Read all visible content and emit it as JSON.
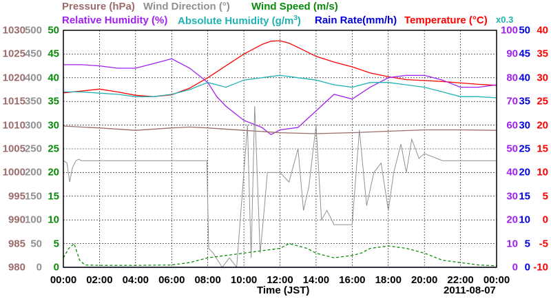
{
  "legend": {
    "pressure": "Pressure (hPa)",
    "wind_dir": "Wind Direction (°)",
    "wind_speed": "Wind Speed (m/s)",
    "rel_hum": "Relative Humidity (%)",
    "abs_hum_a": "Absolute Humidity (g/m",
    "abs_hum_sup": "3",
    "abs_hum_b": ")",
    "rain": "Rain Rate(mm/h)",
    "temp": "Temperature (°C)",
    "abs_scale": "x0.3"
  },
  "x_axis": {
    "ticks": [
      "00:00",
      "02:00",
      "04:00",
      "06:00",
      "08:00",
      "10:00",
      "12:00",
      "14:00",
      "16:00",
      "18:00",
      "20:00",
      "22:00",
      "00:00"
    ],
    "label": "Time (JST)",
    "date": "2011-08-07"
  },
  "y_axes": {
    "pressure": [
      "1030",
      "1025",
      "1020",
      "1015",
      "1010",
      "1005",
      "1000",
      "995",
      "990",
      "985",
      "980"
    ],
    "wind_dir": [
      "500",
      "450",
      "400",
      "350",
      "300",
      "250",
      "200",
      "150",
      "100",
      "50",
      "0"
    ],
    "wind_speed": [
      "50",
      "45",
      "40",
      "35",
      "30",
      "25",
      "20",
      "15",
      "10",
      "5",
      "0"
    ],
    "rel_hum": [
      "100",
      "90",
      "80",
      "70",
      "60",
      "50",
      "40",
      "30",
      "20",
      "10",
      "0"
    ],
    "rain": [
      "50",
      "45",
      "40",
      "35",
      "30",
      "25",
      "20",
      "15",
      "10",
      "5",
      "0"
    ],
    "temp": [
      "40",
      "35",
      "30",
      "25",
      "20",
      "15",
      "10",
      "5",
      "0",
      "-5",
      "-10"
    ]
  },
  "colors": {
    "pressure": "#9b6b6b",
    "wind_dir": "#909090",
    "wind_speed": "#0a8a0a",
    "rel_hum": "#a020f0",
    "abs_hum": "#20b2b2",
    "rain": "#0000dd",
    "temp": "#ff0000"
  },
  "chart_data": {
    "type": "line",
    "x_range": [
      0,
      24
    ],
    "grid": true,
    "series": [
      {
        "name": "Temperature (°C)",
        "axis": "temp",
        "x": [
          0,
          1,
          2,
          3,
          4,
          5,
          6,
          7,
          8,
          9,
          10,
          11,
          11.5,
          12,
          12.5,
          13,
          14,
          15,
          16,
          17,
          18,
          19,
          20,
          21,
          22,
          23,
          24
        ],
        "y": [
          26.8,
          27.2,
          27.6,
          27.0,
          26.3,
          26.0,
          26.4,
          27.8,
          30.0,
          32.5,
          35.0,
          37.0,
          37.7,
          37.8,
          37.3,
          36.4,
          34.5,
          33.3,
          32.3,
          31.0,
          30.2,
          29.6,
          29.4,
          29.2,
          28.9,
          28.6,
          28.4
        ]
      },
      {
        "name": "Relative Humidity (%)",
        "axis": "rel_hum",
        "x": [
          0,
          1,
          2,
          3,
          4,
          5,
          6,
          7,
          8,
          8.5,
          9,
          10,
          11,
          11.5,
          12,
          13,
          14,
          15,
          16,
          17,
          18,
          19,
          20,
          21,
          22,
          23,
          24
        ],
        "y": [
          85.5,
          85.5,
          85,
          84,
          84,
          86,
          88,
          84,
          78,
          72,
          68,
          62,
          59,
          56,
          58,
          59,
          66,
          73,
          71,
          76,
          80,
          81,
          81,
          79,
          76,
          76,
          77
        ]
      },
      {
        "name": "Absolute Humidity (g/m3)",
        "axis": "rel_hum",
        "x": [
          0,
          1,
          2,
          3,
          4,
          5,
          6,
          7,
          8,
          9,
          10,
          11,
          12,
          13,
          14,
          15,
          16,
          17,
          18,
          19,
          20,
          21,
          22,
          23,
          24
        ],
        "y": [
          74,
          74,
          73.5,
          73,
          72,
          72,
          73,
          75,
          78,
          76,
          79,
          80,
          81,
          80,
          79,
          77,
          76,
          78,
          78,
          77,
          76,
          74,
          72,
          72,
          71.5
        ]
      },
      {
        "name": "Pressure (hPa)",
        "axis": "pressure",
        "x": [
          0,
          2,
          4,
          6,
          7,
          8,
          10,
          12,
          14,
          16,
          18,
          20,
          22,
          24
        ],
        "y": [
          1009.8,
          1009.4,
          1008.9,
          1009.4,
          1009.6,
          1009.4,
          1008.9,
          1008.4,
          1008.2,
          1008.4,
          1008.7,
          1009.0,
          1009.0,
          1008.9
        ]
      },
      {
        "name": "Wind Direction (°)",
        "axis": "wind_dir",
        "x": [
          0,
          0.2,
          0.35,
          0.5,
          0.7,
          0.85,
          1,
          3,
          5,
          7,
          7.95,
          8.05,
          8.3,
          8.8,
          9.2,
          9.6,
          10.2,
          10.4,
          10.6,
          10.9,
          11.1,
          11.3,
          11.5,
          12,
          12.5,
          13,
          13.3,
          13.6,
          14,
          14.3,
          14.6,
          15,
          15.2,
          15.6,
          16,
          16.4,
          16.8,
          17.2,
          17.6,
          18,
          18.3,
          18.7,
          19,
          19.3,
          19.7,
          20,
          21,
          22,
          23,
          24
        ],
        "y": [
          225,
          220,
          180,
          210,
          225,
          228,
          225,
          225,
          225,
          225,
          225,
          40,
          30,
          0,
          20,
          0,
          300,
          20,
          340,
          30,
          110,
          200,
          200,
          200,
          180,
          250,
          120,
          170,
          300,
          100,
          120,
          90,
          90,
          90,
          90,
          290,
          130,
          200,
          220,
          120,
          200,
          260,
          200,
          270,
          230,
          240,
          225,
          225,
          225,
          225
        ]
      },
      {
        "name": "Wind Speed (m/s)",
        "axis": "wind_speed",
        "x": [
          0,
          0.3,
          0.6,
          0.9,
          1.2,
          2,
          4,
          6,
          7,
          8,
          9,
          10,
          11,
          12,
          12.5,
          13,
          13.5,
          14,
          15,
          16,
          16.5,
          17,
          18,
          19,
          20,
          21,
          22,
          23,
          24
        ],
        "y": [
          2,
          4,
          5,
          1.5,
          0.5,
          0.4,
          0.4,
          0.5,
          1,
          2,
          2.5,
          3,
          3.5,
          4,
          5,
          4.5,
          4,
          3,
          2,
          2.5,
          3,
          4,
          4.5,
          4,
          3,
          1.5,
          1,
          0.5,
          0.3
        ]
      },
      {
        "name": "Rain Rate(mm/h)",
        "axis": "rain",
        "x": [
          0,
          24
        ],
        "y": [
          0,
          0
        ]
      }
    ]
  }
}
